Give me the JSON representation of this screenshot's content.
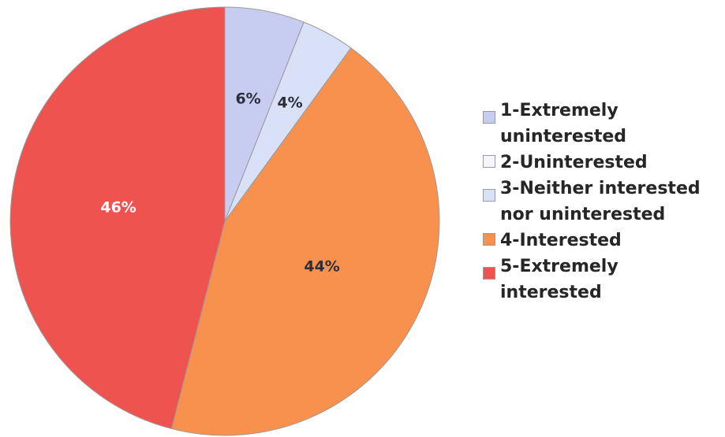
{
  "chart_data": {
    "type": "pie",
    "slices": [
      {
        "label": "1-Extremely uninterested",
        "value": 6,
        "data_label": "6%",
        "color": "#c7cdf0",
        "label_color": "#2e2e3a"
      },
      {
        "label": "2-Uninterested",
        "value": 0,
        "data_label": "",
        "color": "#f4f5fd",
        "label_color": "#2e2e3a"
      },
      {
        "label": "3-Neither interested nor uninterested",
        "value": 4,
        "data_label": "4%",
        "color": "#d8e1f8",
        "label_color": "#2e2e3a"
      },
      {
        "label": "4-Interested",
        "value": 44,
        "data_label": "44%",
        "color": "#f8914d",
        "label_color": "#2e2e3a"
      },
      {
        "label": "5-Extremely interested",
        "value": 46,
        "data_label": "46%",
        "color": "#ef5350",
        "label_color": "#ffffff"
      }
    ],
    "start_angle": "12 o'clock",
    "direction": "clockwise",
    "legend_position": "right"
  },
  "legend": {
    "items": [
      {
        "lines": [
          "1-Extremely",
          "uninterested"
        ]
      },
      {
        "lines": [
          "2-Uninterested"
        ]
      },
      {
        "lines": [
          "3-Neither interested",
          "nor uninterested"
        ]
      },
      {
        "lines": [
          "4-Interested"
        ]
      },
      {
        "lines": [
          "5-Extremely",
          "interested"
        ]
      }
    ]
  }
}
